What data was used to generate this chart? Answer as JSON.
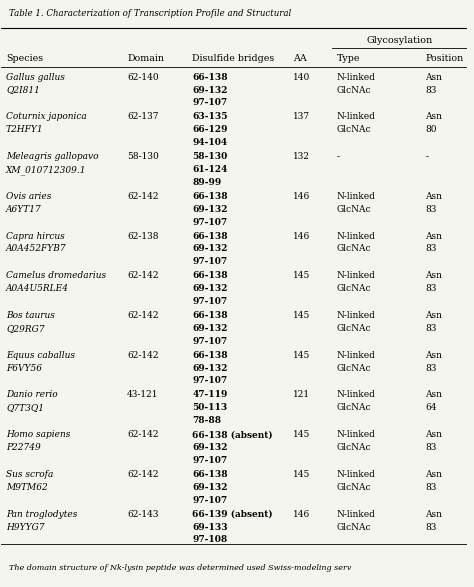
{
  "title": "Table 1. Characterization of Transcription Profile and Structural",
  "footnote": "The domain structure of Nk-lysin peptide was determined used Swiss-modeling serv",
  "header_row1": [
    "",
    "",
    "",
    "",
    "Glycosylation",
    ""
  ],
  "header_row2": [
    "Species",
    "Domain",
    "Disulfide bridges",
    "AA",
    "Type",
    "Position"
  ],
  "rows": [
    {
      "species_italic": "Gallus gallus",
      "species_acc": "Q2I811",
      "domain": "62-140",
      "bridges": [
        "66-138",
        "69-132",
        "97-107"
      ],
      "aa": "140",
      "gtype": [
        "N-linked",
        "GlcNAc"
      ],
      "gpos": [
        "Asn",
        "83"
      ]
    },
    {
      "species_italic": "Coturnix japonica",
      "species_acc": "T2HFY1",
      "domain": "62-137",
      "bridges": [
        "63-135",
        "66-129",
        "94-104"
      ],
      "aa": "137",
      "gtype": [
        "N-linked",
        "GlcNAc"
      ],
      "gpos": [
        "Asn",
        "80"
      ]
    },
    {
      "species_italic": "Meleagris gallopavo",
      "species_acc": "XM_010712309.1",
      "domain": "58-130",
      "bridges": [
        "58-130",
        "61-124",
        "89-99"
      ],
      "aa": "132",
      "gtype": [
        "-"
      ],
      "gpos": [
        "-"
      ]
    },
    {
      "species_italic": "Ovis aries",
      "species_acc": "A6YT17",
      "domain": "62-142",
      "bridges": [
        "66-138",
        "69-132",
        "97-107"
      ],
      "aa": "146",
      "gtype": [
        "N-linked",
        "GlcNAc"
      ],
      "gpos": [
        "Asn",
        "83"
      ]
    },
    {
      "species_italic": "Capra hircus",
      "species_acc": "A0A452FYB7",
      "domain": "62-138",
      "bridges": [
        "66-138",
        "69-132",
        "97-107"
      ],
      "aa": "146",
      "gtype": [
        "N-linked",
        "GlcNAc"
      ],
      "gpos": [
        "Asn",
        "83"
      ]
    },
    {
      "species_italic": "Camelus dromedarius",
      "species_acc": "A0A4U5RLE4",
      "domain": "62-142",
      "bridges": [
        "66-138",
        "69-132",
        "97-107"
      ],
      "aa": "145",
      "gtype": [
        "N-linked",
        "GlcNAc"
      ],
      "gpos": [
        "Asn",
        "83"
      ]
    },
    {
      "species_italic": "Bos taurus",
      "species_acc": "Q29RG7",
      "domain": "62-142",
      "bridges": [
        "66-138",
        "69-132",
        "97-107"
      ],
      "aa": "145",
      "gtype": [
        "N-linked",
        "GlcNAc"
      ],
      "gpos": [
        "Asn",
        "83"
      ]
    },
    {
      "species_italic": "Equus caballus",
      "species_acc": "F6VY56",
      "domain": "62-142",
      "bridges": [
        "66-138",
        "69-132",
        "97-107"
      ],
      "aa": "145",
      "gtype": [
        "N-linked",
        "GlcNAc"
      ],
      "gpos": [
        "Asn",
        "83"
      ]
    },
    {
      "species_italic": "Danio rerio",
      "species_acc": "Q7T3Q1",
      "domain": "43-121",
      "bridges": [
        "47-119",
        "50-113",
        "78-88"
      ],
      "aa": "121",
      "gtype": [
        "N-linked",
        "GlcNAc"
      ],
      "gpos": [
        "Asn",
        "64"
      ]
    },
    {
      "species_italic": "Homo sapiens",
      "species_acc": "P22749",
      "domain": "62-142",
      "bridges": [
        "66-138 (absent)",
        "69-132",
        "97-107"
      ],
      "aa": "145",
      "gtype": [
        "N-linked",
        "GlcNAc"
      ],
      "gpos": [
        "Asn",
        "83"
      ]
    },
    {
      "species_italic": "Sus scrofa",
      "species_acc": "M9TM62",
      "domain": "62-142",
      "bridges": [
        "66-138",
        "69-132",
        "97-107"
      ],
      "aa": "145",
      "gtype": [
        "N-linked",
        "GlcNAc"
      ],
      "gpos": [
        "Asn",
        "83"
      ]
    },
    {
      "species_italic": "Pan troglodytes",
      "species_acc": "H9YYG7",
      "domain": "62-143",
      "bridges": [
        "66-139 (absent)",
        "69-133",
        "97-108"
      ],
      "aa": "146",
      "gtype": [
        "N-linked",
        "GlcNAc"
      ],
      "gpos": [
        "Asn",
        "83"
      ]
    }
  ],
  "col_x": {
    "species": 0.01,
    "domain": 0.27,
    "bridges": 0.41,
    "aa": 0.625,
    "gtype": 0.72,
    "gpos": 0.91
  },
  "bg_color": "#f5f5f0",
  "text_color": "#000000"
}
